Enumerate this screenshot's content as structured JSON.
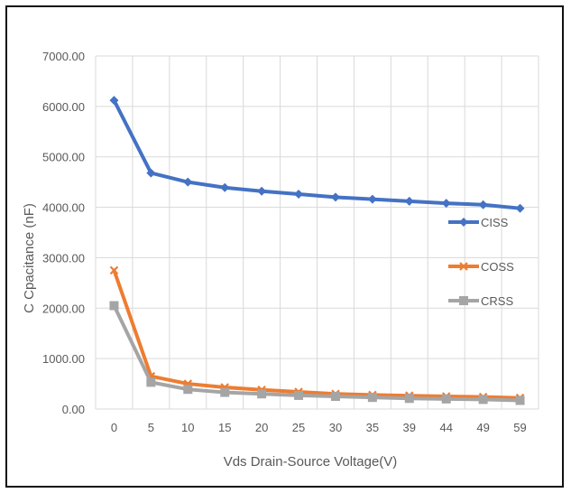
{
  "chart_data": {
    "type": "line",
    "title": "",
    "xlabel": "Vds Drain-Source Voltage(V)",
    "ylabel": "C Cpacitance (nF)",
    "categories": [
      "0",
      "5",
      "10",
      "15",
      "20",
      "25",
      "30",
      "35",
      "39",
      "44",
      "49",
      "59"
    ],
    "y_ticks": [
      "0.00",
      "1000.00",
      "2000.00",
      "3000.00",
      "4000.00",
      "5000.00",
      "6000.00",
      "7000.00"
    ],
    "ylim": [
      0,
      7000
    ],
    "grid": true,
    "legend_position": "right",
    "series": [
      {
        "name": "CISS",
        "color": "#4472C4",
        "marker": "diamond",
        "values": [
          6120,
          4680,
          4500,
          4390,
          4320,
          4260,
          4200,
          4160,
          4120,
          4080,
          4050,
          3980
        ]
      },
      {
        "name": "COSS",
        "color": "#ED7D31",
        "marker": "x",
        "values": [
          2750,
          650,
          500,
          430,
          380,
          340,
          300,
          280,
          265,
          250,
          240,
          220
        ]
      },
      {
        "name": "CRSS",
        "color": "#A5A5A5",
        "marker": "square",
        "values": [
          2050,
          530,
          390,
          330,
          300,
          270,
          250,
          230,
          210,
          200,
          190,
          170
        ]
      }
    ]
  }
}
